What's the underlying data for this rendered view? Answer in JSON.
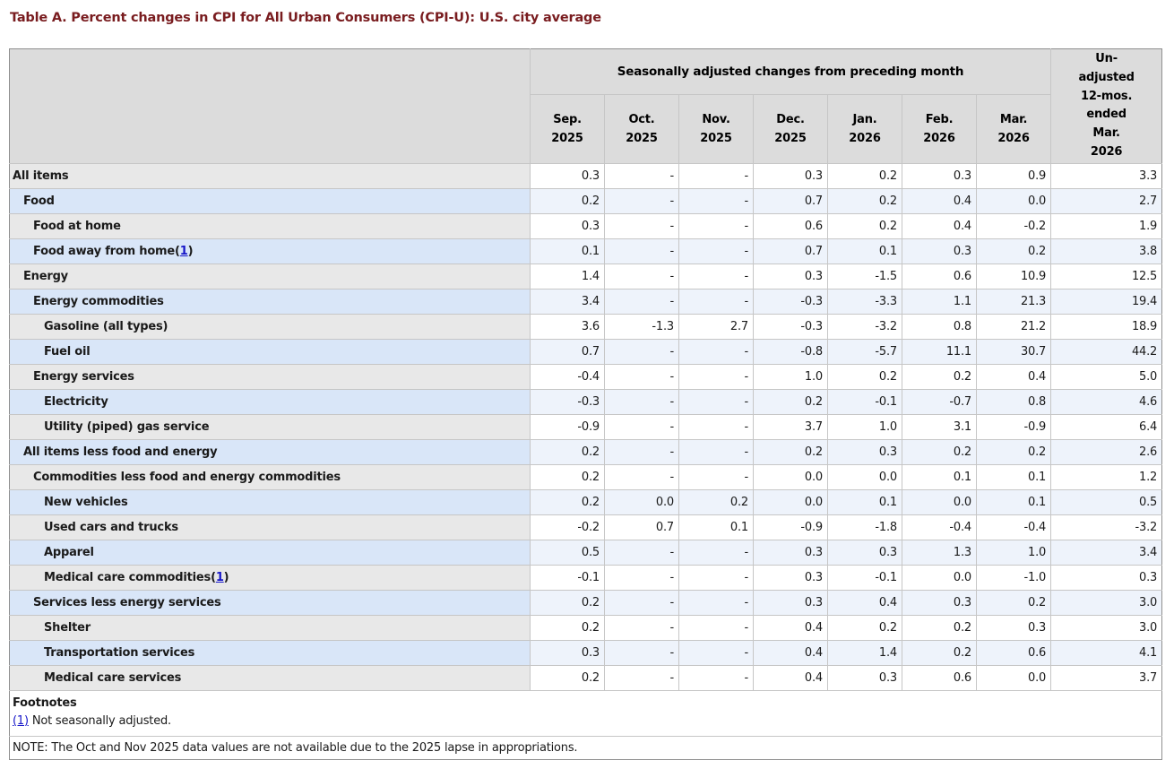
{
  "page_title": "Table A. Percent changes in CPI for All Urban Consumers (CPI-U): U.S. city average",
  "colors": {
    "title_maroon": "#791c1f",
    "header_bg": "#dcdcdc",
    "row_label_gray": "#e8e8e8",
    "row_label_blue": "#d9e6f8",
    "data_cell_blue": "#eef3fb",
    "data_cell_white": "#ffffff",
    "link_blue": "#1717c9",
    "border_inner": "#c6c6c6",
    "border_outer": "#8f8f8f"
  },
  "table": {
    "header": {
      "group_label": "Seasonally adjusted changes from preceding month",
      "unadjusted_label": "Un-adjusted 12-mos. ended Mar. 2026",
      "months": [
        {
          "line1": "Sep.",
          "line2": "2025"
        },
        {
          "line1": "Oct.",
          "line2": "2025"
        },
        {
          "line1": "Nov.",
          "line2": "2025"
        },
        {
          "line1": "Dec.",
          "line2": "2025"
        },
        {
          "line1": "Jan.",
          "line2": "2026"
        },
        {
          "line1": "Feb.",
          "line2": "2026"
        },
        {
          "line1": "Mar.",
          "line2": "2026"
        }
      ]
    },
    "footnote_marker": {
      "open": "(",
      "close": ")"
    },
    "rows": [
      {
        "label": "All items",
        "indent": 0,
        "footnote_num": null,
        "values": [
          "0.3",
          "-",
          "-",
          "0.3",
          "0.2",
          "0.3",
          "0.9",
          "3.3"
        ]
      },
      {
        "label": "Food",
        "indent": 1,
        "footnote_num": null,
        "values": [
          "0.2",
          "-",
          "-",
          "0.7",
          "0.2",
          "0.4",
          "0.0",
          "2.7"
        ]
      },
      {
        "label": "Food at home",
        "indent": 2,
        "footnote_num": null,
        "values": [
          "0.3",
          "-",
          "-",
          "0.6",
          "0.2",
          "0.4",
          "-0.2",
          "1.9"
        ]
      },
      {
        "label": "Food away from home",
        "indent": 2,
        "footnote_num": "1",
        "values": [
          "0.1",
          "-",
          "-",
          "0.7",
          "0.1",
          "0.3",
          "0.2",
          "3.8"
        ]
      },
      {
        "label": "Energy",
        "indent": 1,
        "footnote_num": null,
        "values": [
          "1.4",
          "-",
          "-",
          "0.3",
          "-1.5",
          "0.6",
          "10.9",
          "12.5"
        ]
      },
      {
        "label": "Energy commodities",
        "indent": 2,
        "footnote_num": null,
        "values": [
          "3.4",
          "-",
          "-",
          "-0.3",
          "-3.3",
          "1.1",
          "21.3",
          "19.4"
        ]
      },
      {
        "label": "Gasoline (all types)",
        "indent": 3,
        "footnote_num": null,
        "values": [
          "3.6",
          "-1.3",
          "2.7",
          "-0.3",
          "-3.2",
          "0.8",
          "21.2",
          "18.9"
        ]
      },
      {
        "label": "Fuel oil",
        "indent": 3,
        "footnote_num": null,
        "values": [
          "0.7",
          "-",
          "-",
          "-0.8",
          "-5.7",
          "11.1",
          "30.7",
          "44.2"
        ]
      },
      {
        "label": "Energy services",
        "indent": 2,
        "footnote_num": null,
        "values": [
          "-0.4",
          "-",
          "-",
          "1.0",
          "0.2",
          "0.2",
          "0.4",
          "5.0"
        ]
      },
      {
        "label": "Electricity",
        "indent": 3,
        "footnote_num": null,
        "values": [
          "-0.3",
          "-",
          "-",
          "0.2",
          "-0.1",
          "-0.7",
          "0.8",
          "4.6"
        ]
      },
      {
        "label": "Utility (piped) gas service",
        "indent": 3,
        "footnote_num": null,
        "values": [
          "-0.9",
          "-",
          "-",
          "3.7",
          "1.0",
          "3.1",
          "-0.9",
          "6.4"
        ]
      },
      {
        "label": "All items less food and energy",
        "indent": 1,
        "footnote_num": null,
        "values": [
          "0.2",
          "-",
          "-",
          "0.2",
          "0.3",
          "0.2",
          "0.2",
          "2.6"
        ]
      },
      {
        "label": "Commodities less food and energy commodities",
        "indent": 2,
        "footnote_num": null,
        "values": [
          "0.2",
          "-",
          "-",
          "0.0",
          "0.0",
          "0.1",
          "0.1",
          "1.2"
        ]
      },
      {
        "label": "New vehicles",
        "indent": 3,
        "footnote_num": null,
        "values": [
          "0.2",
          "0.0",
          "0.2",
          "0.0",
          "0.1",
          "0.0",
          "0.1",
          "0.5"
        ]
      },
      {
        "label": "Used cars and trucks",
        "indent": 3,
        "footnote_num": null,
        "values": [
          "-0.2",
          "0.7",
          "0.1",
          "-0.9",
          "-1.8",
          "-0.4",
          "-0.4",
          "-3.2"
        ]
      },
      {
        "label": "Apparel",
        "indent": 3,
        "footnote_num": null,
        "values": [
          "0.5",
          "-",
          "-",
          "0.3",
          "0.3",
          "1.3",
          "1.0",
          "3.4"
        ]
      },
      {
        "label": "Medical care commodities",
        "indent": 3,
        "footnote_num": "1",
        "values": [
          "-0.1",
          "-",
          "-",
          "0.3",
          "-0.1",
          "0.0",
          "-1.0",
          "0.3"
        ]
      },
      {
        "label": "Services less energy services",
        "indent": 2,
        "footnote_num": null,
        "values": [
          "0.2",
          "-",
          "-",
          "0.3",
          "0.4",
          "0.3",
          "0.2",
          "3.0"
        ]
      },
      {
        "label": "Shelter",
        "indent": 3,
        "footnote_num": null,
        "values": [
          "0.2",
          "-",
          "-",
          "0.4",
          "0.2",
          "0.2",
          "0.3",
          "3.0"
        ]
      },
      {
        "label": "Transportation services",
        "indent": 3,
        "footnote_num": null,
        "values": [
          "0.3",
          "-",
          "-",
          "0.4",
          "1.4",
          "0.2",
          "0.6",
          "4.1"
        ]
      },
      {
        "label": "Medical care services",
        "indent": 3,
        "footnote_num": null,
        "values": [
          "0.2",
          "-",
          "-",
          "0.4",
          "0.3",
          "0.6",
          "0.0",
          "3.7"
        ]
      }
    ],
    "footnotes": {
      "heading": "Footnotes",
      "items": [
        {
          "ref": "(1)",
          "text": "Not seasonally adjusted."
        }
      ],
      "note": "NOTE: The Oct and Nov 2025 data values are not available due to the 2025 lapse in appropriations."
    }
  }
}
